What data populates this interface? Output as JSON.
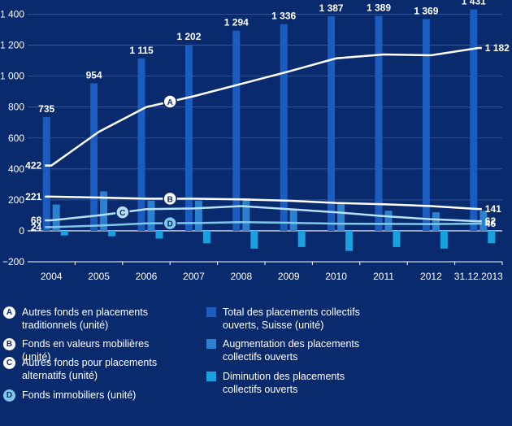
{
  "chart_data": {
    "type": "bar",
    "categories": [
      "2004",
      "2005",
      "2006",
      "2007",
      "2008",
      "2009",
      "2010",
      "2011",
      "2012",
      "31.12.2013"
    ],
    "ylim": [
      -200,
      1450
    ],
    "yticks": [
      "1 400",
      "1 200",
      "1 000",
      "800",
      "600",
      "400",
      "200",
      "0",
      "−200"
    ],
    "ytick_values": [
      1400,
      1200,
      1000,
      800,
      600,
      400,
      200,
      0,
      -200
    ],
    "grid": true,
    "bar_series": [
      {
        "key": "total",
        "name": "Total des placements collectifs ouverts, Suisse (unité)",
        "color": "#1a5cc0",
        "values": [
          735,
          954,
          1115,
          1202,
          1294,
          1336,
          1387,
          1389,
          1369,
          1431
        ],
        "labels": [
          "735",
          "954",
          "1 115",
          "1 202",
          "1 294",
          "1 336",
          "1 387",
          "1 389",
          "1 369",
          "1 431"
        ]
      },
      {
        "key": "increase",
        "name": "Augmentation des placements collectifs ouverts",
        "color": "#2c80d0",
        "values": [
          170,
          255,
          195,
          195,
          210,
          140,
          180,
          130,
          120,
          130
        ]
      },
      {
        "key": "decrease",
        "name": "Diminution des placements collectifs ouverts",
        "color": "#18a0e0",
        "values": [
          -30,
          -35,
          -50,
          -80,
          -115,
          -105,
          -130,
          -105,
          -115,
          -80
        ]
      }
    ],
    "line_series": [
      {
        "key": "A",
        "name": "Autres fonds en placements traditionnels (unité)",
        "color": "#ffffff",
        "values": [
          422,
          640,
          800,
          870,
          950,
          1030,
          1115,
          1140,
          1135,
          1182
        ],
        "first_label": "422",
        "last_label": "1 182",
        "badge_index": 2.5
      },
      {
        "key": "B",
        "name": "Fonds en valeurs mobilières (unité)",
        "color": "#ffffff",
        "values": [
          221,
          215,
          208,
          208,
          203,
          195,
          180,
          172,
          160,
          141
        ],
        "first_label": "221",
        "last_label": "141",
        "badge_index": 2.5
      },
      {
        "key": "C",
        "name": "Autres fonds pour placements alternatifs (unité)",
        "color": "#b8e0f7",
        "values": [
          68,
          100,
          140,
          145,
          160,
          140,
          120,
          95,
          75,
          62
        ],
        "first_label": "68",
        "last_label": "62",
        "badge_index": 1.5
      },
      {
        "key": "D",
        "name": "Fonds immobiliers (unité)",
        "color": "#7fc8ec",
        "values": [
          24,
          34,
          48,
          50,
          56,
          52,
          46,
          45,
          44,
          46
        ],
        "first_label": "24",
        "last_label": "46",
        "badge_index": 2.5
      }
    ]
  },
  "legend": {
    "left": [
      {
        "badge": "A",
        "label": "Autres fonds en placements traditionnels (unité)"
      },
      {
        "badge": "B",
        "label": "Fonds en valeurs mobilières (unité)"
      },
      {
        "badge": "C",
        "label": "Autres fonds pour placements alternatifs (unité)"
      },
      {
        "badge": "D",
        "label": "Fonds immobiliers (unité)"
      }
    ],
    "right": [
      {
        "label": "Total des placements collectifs ouverts, Suisse (unité)",
        "color": "#1a5cc0"
      },
      {
        "label": "Augmentation des placements collectifs ouverts",
        "color": "#2c80d0"
      },
      {
        "label": "Diminution des placements collectifs ouverts",
        "color": "#18a0e0"
      }
    ]
  }
}
